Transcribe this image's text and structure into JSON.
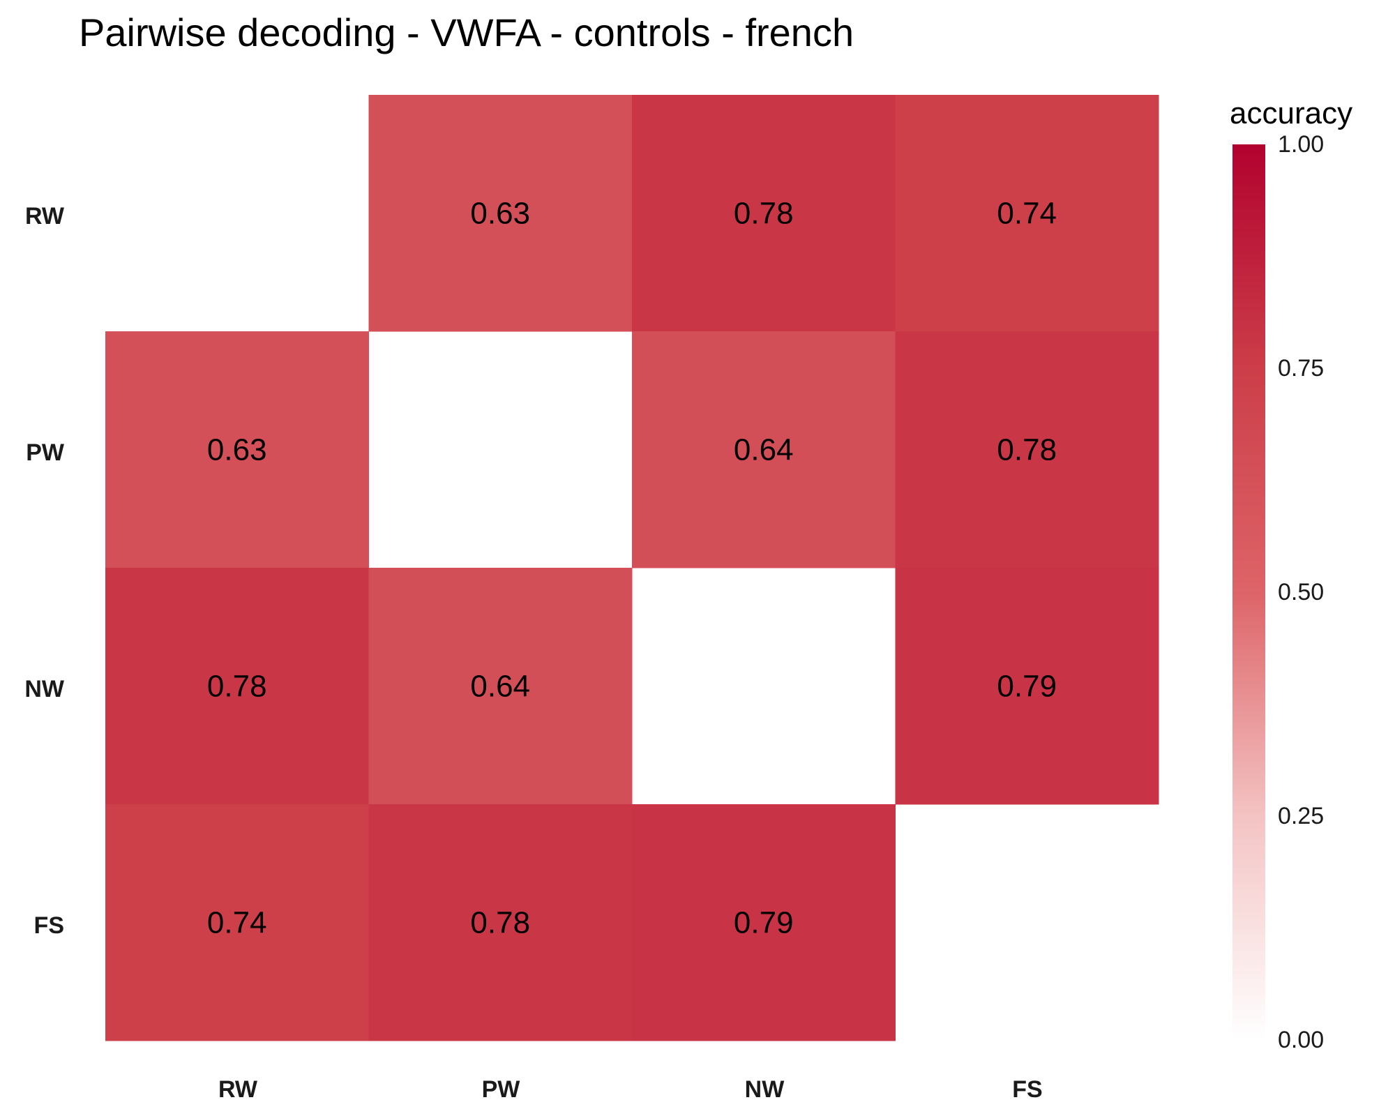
{
  "chart_data": {
    "type": "heatmap",
    "title": "Pairwise decoding - VWFA - controls - french",
    "categories": [
      "RW",
      "PW",
      "NW",
      "FS"
    ],
    "rows": [
      "RW",
      "PW",
      "NW",
      "FS"
    ],
    "columns": [
      "RW",
      "PW",
      "NW",
      "FS"
    ],
    "values": [
      [
        null,
        0.63,
        0.78,
        0.74
      ],
      [
        0.63,
        null,
        0.64,
        0.78
      ],
      [
        0.78,
        0.64,
        null,
        0.79
      ],
      [
        0.74,
        0.78,
        0.79,
        null
      ]
    ],
    "cell_labels": [
      [
        null,
        "0.63",
        "0.78",
        "0.74"
      ],
      [
        "0.63",
        null,
        "0.64",
        "0.78"
      ],
      [
        "0.78",
        "0.64",
        null,
        "0.79"
      ],
      [
        "0.74",
        "0.78",
        "0.79",
        null
      ]
    ],
    "legend": {
      "title": "accuracy",
      "ticks": [
        "0.00",
        "0.25",
        "0.50",
        "0.75",
        "1.00"
      ],
      "tick_values": [
        0,
        0.25,
        0.5,
        0.75,
        1.0
      ],
      "range": [
        0,
        1
      ],
      "placement": "right"
    },
    "colors": {
      "low": "#ffffff",
      "mid": "#dd6468",
      "high": "#b2022f"
    }
  }
}
